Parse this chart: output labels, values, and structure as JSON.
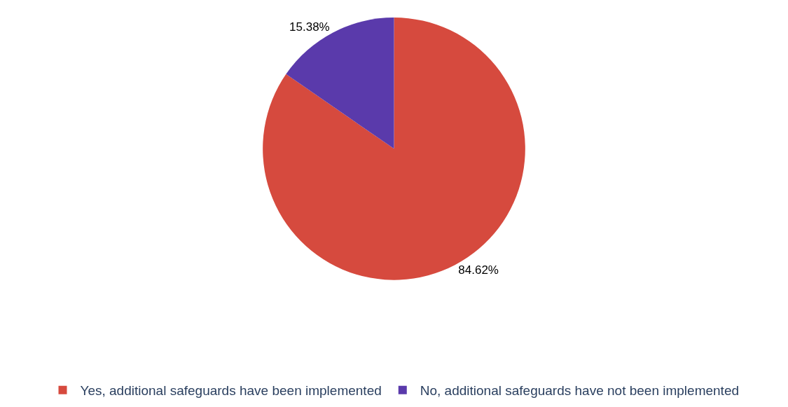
{
  "chart_data": {
    "type": "pie",
    "categories": [
      "Yes, additional safeguards have been implemented",
      "No, additional safeguards have not been implemented"
    ],
    "values": [
      84.62,
      15.38
    ],
    "colors": [
      "#d64a3e",
      "#5a3aab"
    ],
    "value_labels": [
      "84.62%",
      "15.38%"
    ],
    "legend": "bottom"
  }
}
